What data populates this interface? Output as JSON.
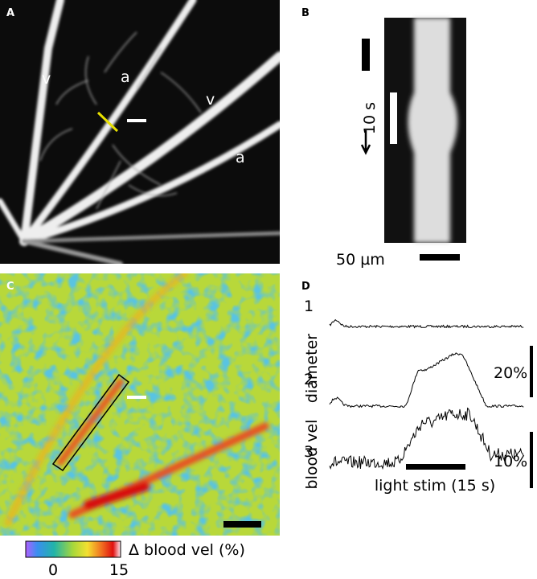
{
  "panels": [
    {
      "label": "A",
      "annotations": [
        "v",
        "a",
        "v",
        "a"
      ]
    },
    {
      "label": "B",
      "time_scale": "10 s",
      "length_scale": "50 µm"
    },
    {
      "label": "C",
      "colorbar": {
        "title": "Δ blood vel (%)",
        "ticks": [
          "0",
          "15"
        ]
      }
    },
    {
      "label": "D",
      "traces": [
        "1",
        "2",
        "3"
      ],
      "axis_labels": [
        "diameter",
        "blood vel"
      ],
      "scale_labels": [
        "20%",
        "10%"
      ],
      "stim_label": "light stim (15 s)"
    }
  ]
}
